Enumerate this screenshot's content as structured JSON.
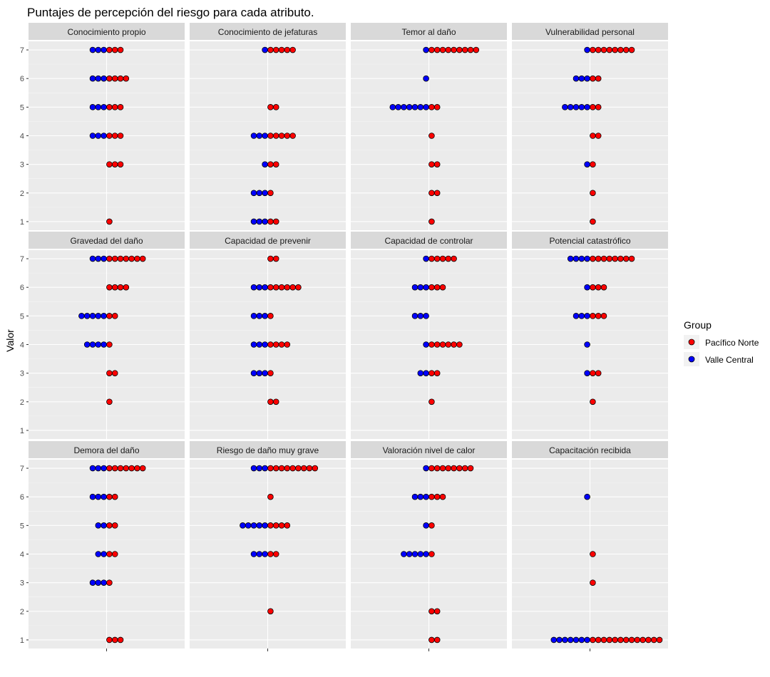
{
  "chart_data": {
    "type": "scatter",
    "title": "Puntajes de percepción del riesgo para cada atributo.",
    "xlabel": "",
    "ylabel": "Valor",
    "ylim": [
      1,
      7
    ],
    "yticks": [
      1,
      2,
      3,
      4,
      5,
      6,
      7
    ],
    "legend": {
      "title": "Group",
      "position": "right",
      "entries": [
        {
          "name": "Pacífico Norte",
          "color": "#ff0000"
        },
        {
          "name": "Valle Central",
          "color": "#0000ff"
        }
      ]
    },
    "facets": [
      {
        "label": "Conocimiento propio",
        "counts": {
          "7": [
            3,
            3
          ],
          "6": [
            3,
            4
          ],
          "5": [
            3,
            3
          ],
          "4": [
            3,
            3
          ],
          "3": [
            0,
            3
          ],
          "2": [
            0,
            0
          ],
          "1": [
            0,
            1
          ]
        }
      },
      {
        "label": "Conocimiento de jefaturas",
        "counts": {
          "7": [
            1,
            5
          ],
          "6": [
            0,
            0
          ],
          "5": [
            0,
            2
          ],
          "4": [
            3,
            5
          ],
          "3": [
            1,
            2
          ],
          "2": [
            3,
            1
          ],
          "1": [
            3,
            2
          ]
        }
      },
      {
        "label": "Temor al daño",
        "counts": {
          "7": [
            1,
            9
          ],
          "6": [
            1,
            0
          ],
          "5": [
            7,
            2
          ],
          "4": [
            0,
            1
          ],
          "3": [
            0,
            2
          ],
          "2": [
            0,
            2
          ],
          "1": [
            0,
            1
          ]
        }
      },
      {
        "label": "Vulnerabilidad personal",
        "counts": {
          "7": [
            1,
            8
          ],
          "6": [
            3,
            2
          ],
          "5": [
            5,
            2
          ],
          "4": [
            0,
            2
          ],
          "3": [
            1,
            1
          ],
          "2": [
            0,
            1
          ],
          "1": [
            0,
            1
          ]
        }
      },
      {
        "label": "Gravedad del daño",
        "counts": {
          "7": [
            3,
            7
          ],
          "6": [
            0,
            4
          ],
          "5": [
            5,
            2
          ],
          "4": [
            4,
            1
          ],
          "3": [
            0,
            2
          ],
          "2": [
            0,
            1
          ],
          "1": [
            0,
            0
          ]
        }
      },
      {
        "label": "Capacidad de prevenir",
        "counts": {
          "7": [
            0,
            2
          ],
          "6": [
            3,
            6
          ],
          "5": [
            3,
            1
          ],
          "4": [
            3,
            4
          ],
          "3": [
            3,
            1
          ],
          "2": [
            0,
            2
          ],
          "1": [
            0,
            0
          ]
        }
      },
      {
        "label": "Capacidad de controlar",
        "counts": {
          "7": [
            1,
            5
          ],
          "6": [
            3,
            3
          ],
          "5": [
            3,
            0
          ],
          "4": [
            1,
            6
          ],
          "3": [
            2,
            2
          ],
          "2": [
            0,
            1
          ],
          "1": [
            0,
            0
          ]
        }
      },
      {
        "label": "Potencial catastrófico",
        "counts": {
          "7": [
            4,
            8
          ],
          "6": [
            1,
            3
          ],
          "5": [
            3,
            3
          ],
          "4": [
            1,
            0
          ],
          "3": [
            1,
            2
          ],
          "2": [
            0,
            1
          ],
          "1": [
            0,
            0
          ]
        }
      },
      {
        "label": "Demora del daño",
        "counts": {
          "7": [
            3,
            7
          ],
          "6": [
            3,
            2
          ],
          "5": [
            2,
            2
          ],
          "4": [
            2,
            2
          ],
          "3": [
            3,
            1
          ],
          "2": [
            0,
            0
          ],
          "1": [
            0,
            3
          ]
        }
      },
      {
        "label": "Riesgo de daño muy grave",
        "counts": {
          "7": [
            3,
            9
          ],
          "6": [
            0,
            1
          ],
          "5": [
            5,
            4
          ],
          "4": [
            3,
            2
          ],
          "3": [
            0,
            0
          ],
          "2": [
            0,
            1
          ],
          "1": [
            0,
            0
          ]
        }
      },
      {
        "label": "Valoración nivel de calor",
        "counts": {
          "7": [
            1,
            8
          ],
          "6": [
            3,
            3
          ],
          "5": [
            1,
            1
          ],
          "4": [
            5,
            1
          ],
          "3": [
            0,
            0
          ],
          "2": [
            0,
            2
          ],
          "1": [
            0,
            2
          ]
        }
      },
      {
        "label": "Capacitación recibida",
        "counts": {
          "7": [
            0,
            0
          ],
          "6": [
            1,
            0
          ],
          "5": [
            0,
            0
          ],
          "4": [
            0,
            1
          ],
          "3": [
            0,
            1
          ],
          "2": [
            0,
            0
          ],
          "1": [
            7,
            13
          ]
        }
      }
    ]
  }
}
